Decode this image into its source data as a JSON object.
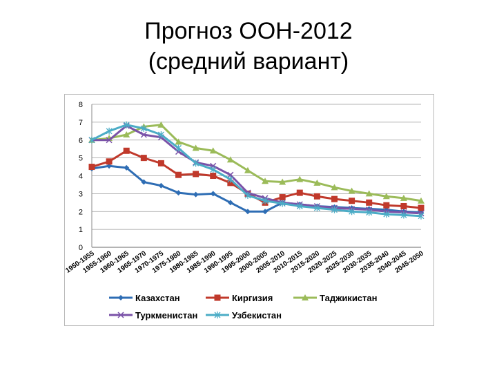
{
  "title": "Прогноз ООН-2012",
  "subtitle": "(средний вариант)",
  "chart_data": {
    "type": "line",
    "categories": [
      "1950-1955",
      "1955-1960",
      "1960-1965",
      "1965-1970",
      "1970-1975",
      "1975-1980",
      "1980-1985",
      "1985-1990",
      "1990-1995",
      "1995-2000",
      "2000-2005",
      "2005-2010",
      "2010-2015",
      "2015-2020",
      "2020-2025",
      "2025-2030",
      "2030-2035",
      "2035-2040",
      "2040-2045",
      "2045-2050"
    ],
    "ylim": [
      0,
      8
    ],
    "yticks": [
      "0",
      "1",
      "2",
      "3",
      "4",
      "5",
      "6",
      "7",
      "8"
    ],
    "grid": true,
    "legend_position": "bottom",
    "series": [
      {
        "name": "Казахстан",
        "color": "#2e6db4",
        "marker": "diamond",
        "values": [
          4.4,
          4.55,
          4.45,
          3.65,
          3.45,
          3.05,
          2.95,
          3.0,
          2.5,
          2.0,
          2.0,
          2.5,
          2.4,
          2.3,
          2.25,
          2.2,
          2.15,
          2.1,
          2.0,
          1.95
        ]
      },
      {
        "name": "Киргизия",
        "color": "#c0392b",
        "marker": "square",
        "values": [
          4.5,
          4.8,
          5.4,
          5.0,
          4.7,
          4.05,
          4.1,
          4.0,
          3.6,
          3.0,
          2.5,
          2.8,
          3.05,
          2.85,
          2.7,
          2.6,
          2.5,
          2.35,
          2.3,
          2.2
        ]
      },
      {
        "name": "Таджикистан",
        "color": "#9bbb59",
        "marker": "triangle",
        "values": [
          6.0,
          6.1,
          6.3,
          6.75,
          6.85,
          5.9,
          5.55,
          5.4,
          4.9,
          4.3,
          3.7,
          3.65,
          3.8,
          3.6,
          3.35,
          3.15,
          3.0,
          2.85,
          2.75,
          2.6
        ]
      },
      {
        "name": "Туркменистан",
        "color": "#7a52a8",
        "marker": "x",
        "values": [
          6.0,
          6.0,
          6.8,
          6.3,
          6.15,
          5.35,
          4.75,
          4.55,
          4.05,
          3.05,
          2.75,
          2.5,
          2.4,
          2.3,
          2.2,
          2.15,
          2.1,
          2.0,
          1.95,
          1.9
        ]
      },
      {
        "name": "Узбекистан",
        "color": "#4bacc6",
        "marker": "star",
        "values": [
          6.0,
          6.5,
          6.85,
          6.65,
          6.3,
          5.55,
          4.7,
          4.35,
          3.8,
          2.9,
          2.6,
          2.45,
          2.3,
          2.2,
          2.1,
          2.0,
          1.95,
          1.85,
          1.8,
          1.75
        ]
      }
    ]
  }
}
